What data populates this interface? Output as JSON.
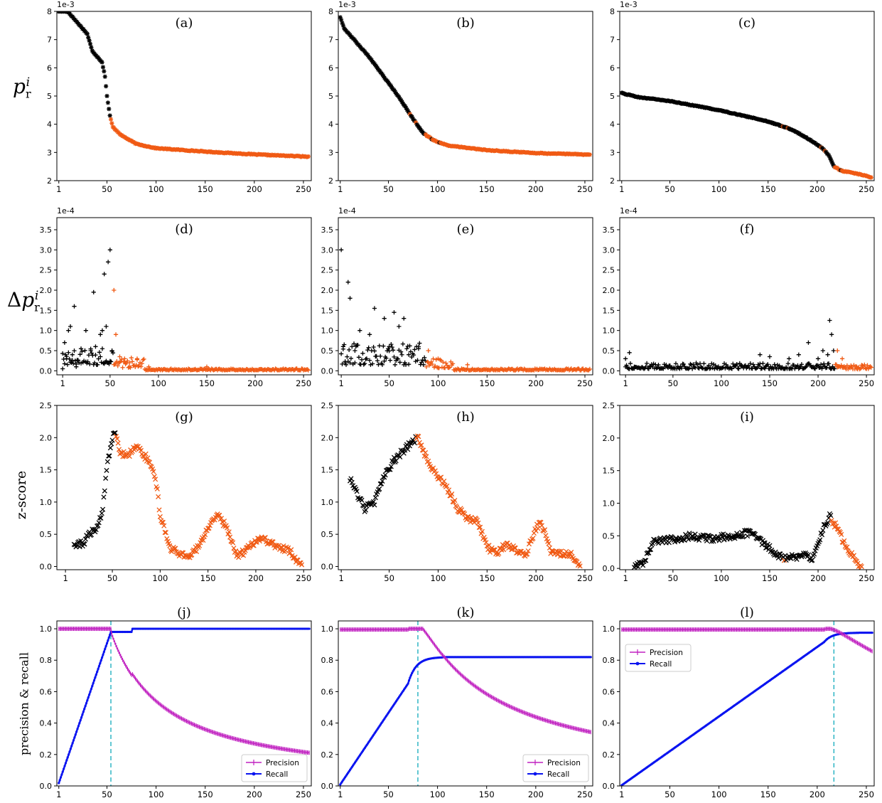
{
  "row_labels": [
    {
      "id": "a",
      "base": "p",
      "sub": "r",
      "sup": "i",
      "prefix": ""
    },
    {
      "id": "b",
      "base": "p",
      "sub": "r",
      "sup": "i",
      "prefix": "Δ"
    },
    {
      "id": "c",
      "text": "z-score"
    },
    {
      "id": "d",
      "text": "precision & recall"
    }
  ],
  "colors": {
    "black": "#000000",
    "orange": "#f05a14",
    "magenta": "#c020c0",
    "blue": "#0a14f0",
    "cyan": "#20b0c0"
  },
  "chart_data": [
    {
      "panel": "(a)",
      "type": "scatter",
      "marker": "*",
      "exponent": "1e-3",
      "yticks": [
        2,
        3,
        4,
        5,
        6,
        7,
        8
      ],
      "ylim": [
        2,
        8
      ],
      "xticks": [
        1,
        50,
        100,
        150,
        200,
        250
      ],
      "xlim": [
        -1,
        258
      ],
      "split_rank": 54,
      "keypoints": [
        [
          10,
          8.0
        ],
        [
          15,
          7.8
        ],
        [
          20,
          7.6
        ],
        [
          30,
          7.2
        ],
        [
          35,
          6.6
        ],
        [
          45,
          6.2
        ],
        [
          48,
          5.7
        ],
        [
          50,
          5.0
        ],
        [
          53,
          4.3
        ],
        [
          56,
          3.9
        ],
        [
          65,
          3.6
        ],
        [
          80,
          3.3
        ],
        [
          100,
          3.15
        ],
        [
          150,
          3.03
        ],
        [
          200,
          2.93
        ],
        [
          255,
          2.85
        ]
      ],
      "overrides": []
    },
    {
      "panel": "(b)",
      "type": "scatter",
      "marker": "*",
      "exponent": "1e-3",
      "yticks": [
        2,
        3,
        4,
        5,
        6,
        7,
        8
      ],
      "ylim": [
        2,
        8
      ],
      "xticks": [
        1,
        50,
        100,
        150,
        200,
        250
      ],
      "xlim": [
        -1,
        258
      ],
      "split_rank": 88,
      "keypoints": [
        [
          1,
          7.8
        ],
        [
          5,
          7.4
        ],
        [
          15,
          7.0
        ],
        [
          30,
          6.4
        ],
        [
          45,
          5.7
        ],
        [
          60,
          5.0
        ],
        [
          75,
          4.2
        ],
        [
          85,
          3.7
        ],
        [
          95,
          3.45
        ],
        [
          110,
          3.25
        ],
        [
          150,
          3.08
        ],
        [
          200,
          2.98
        ],
        [
          255,
          2.92
        ]
      ],
      "overrides": [
        [
          72,
          1
        ],
        [
          78,
          1
        ],
        [
          94,
          0
        ],
        [
          102,
          0
        ]
      ]
    },
    {
      "panel": "(c)",
      "type": "scatter",
      "marker": "*",
      "exponent": "1e-3",
      "yticks": [
        2,
        3,
        4,
        5,
        6,
        7,
        8
      ],
      "ylim": [
        2,
        8
      ],
      "xticks": [
        1,
        50,
        100,
        150,
        200,
        250
      ],
      "xlim": [
        -1,
        258
      ],
      "split_rank": 218,
      "keypoints": [
        [
          1,
          5.1
        ],
        [
          20,
          4.95
        ],
        [
          50,
          4.82
        ],
        [
          100,
          4.5
        ],
        [
          150,
          4.1
        ],
        [
          175,
          3.8
        ],
        [
          195,
          3.4
        ],
        [
          205,
          3.15
        ],
        [
          212,
          2.9
        ],
        [
          217,
          2.5
        ],
        [
          225,
          2.35
        ],
        [
          240,
          2.25
        ],
        [
          255,
          2.12
        ]
      ],
      "overrides": [
        [
          165,
          1
        ],
        [
          170,
          1
        ],
        [
          204,
          1
        ],
        [
          208,
          1
        ],
        [
          224,
          0
        ]
      ]
    },
    {
      "panel": "(d)",
      "type": "scatter",
      "marker": "+",
      "exponent": "1e-4",
      "yticks": [
        "0.0",
        "0.5",
        "1.0",
        "1.5",
        "2.0",
        "2.5",
        "3.0",
        "3.5"
      ],
      "ylim": [
        -0.1,
        3.8
      ],
      "xticks": [
        1,
        50,
        100,
        150,
        200,
        250
      ],
      "xlim": [
        -5,
        258
      ],
      "split_rank": 54,
      "points": [
        [
          1,
          0.05
        ],
        [
          3,
          0.7
        ],
        [
          5,
          0.3
        ],
        [
          7,
          1.0
        ],
        [
          9,
          1.1
        ],
        [
          11,
          0.4
        ],
        [
          13,
          1.6
        ],
        [
          15,
          0.1
        ],
        [
          20,
          0.55
        ],
        [
          25,
          1.0
        ],
        [
          30,
          0.5
        ],
        [
          33,
          1.95
        ],
        [
          35,
          0.6
        ],
        [
          40,
          0.9
        ],
        [
          42,
          1.0
        ],
        [
          44,
          2.4
        ],
        [
          46,
          1.1
        ],
        [
          48,
          2.7
        ],
        [
          50,
          3.0
        ],
        [
          52,
          0.5
        ],
        [
          54,
          2.0
        ],
        [
          56,
          0.9
        ],
        [
          60,
          0.35
        ],
        [
          65,
          0.3
        ],
        [
          70,
          0.2
        ],
        [
          78,
          0.3
        ],
        [
          90,
          0.1
        ],
        [
          150,
          0.1
        ]
      ],
      "bands": [
        {
          "start": 1,
          "end": 53,
          "amp": 0.4,
          "base": 0.15
        },
        {
          "start": 54,
          "end": 85,
          "amp": 0.25,
          "base": 0.08
        },
        {
          "start": 86,
          "end": 255,
          "amp": 0.04,
          "base": 0.015
        }
      ]
    },
    {
      "panel": "(e)",
      "type": "scatter",
      "marker": "+",
      "exponent": "1e-4",
      "yticks": [
        "0.0",
        "0.5",
        "1.0",
        "1.5",
        "2.0",
        "2.5",
        "3.0",
        "3.5"
      ],
      "ylim": [
        -0.1,
        3.8
      ],
      "xticks": [
        1,
        50,
        100,
        150,
        200,
        250
      ],
      "xlim": [
        -2,
        258
      ],
      "split_rank": 88,
      "points": [
        [
          1,
          3.0
        ],
        [
          3,
          0.6
        ],
        [
          5,
          0.2
        ],
        [
          8,
          2.2
        ],
        [
          10,
          1.8
        ],
        [
          15,
          0.5
        ],
        [
          20,
          1.0
        ],
        [
          30,
          0.9
        ],
        [
          35,
          1.55
        ],
        [
          45,
          1.3
        ],
        [
          50,
          0.6
        ],
        [
          55,
          1.45
        ],
        [
          60,
          1.1
        ],
        [
          65,
          1.3
        ],
        [
          70,
          0.4
        ],
        [
          80,
          0.55
        ],
        [
          90,
          0.5
        ],
        [
          100,
          0.3
        ],
        [
          130,
          0.15
        ]
      ],
      "bands": [
        {
          "start": 1,
          "end": 87,
          "amp": 0.55,
          "base": 0.15
        },
        {
          "start": 88,
          "end": 115,
          "amp": 0.25,
          "base": 0.07
        },
        {
          "start": 116,
          "end": 255,
          "amp": 0.04,
          "base": 0.015
        }
      ]
    },
    {
      "panel": "(f)",
      "type": "scatter",
      "marker": "+",
      "exponent": "1e-4",
      "yticks": [
        "0.0",
        "0.5",
        "1.0",
        "1.5",
        "2.0",
        "2.5",
        "3.0",
        "3.5"
      ],
      "ylim": [
        -0.1,
        3.8
      ],
      "xticks": [
        1,
        50,
        100,
        150,
        200,
        250
      ],
      "xlim": [
        -5,
        258
      ],
      "split_rank": 218,
      "points": [
        [
          1,
          0.3
        ],
        [
          5,
          0.45
        ],
        [
          10,
          0.1
        ],
        [
          140,
          0.4
        ],
        [
          150,
          0.35
        ],
        [
          170,
          0.3
        ],
        [
          180,
          0.4
        ],
        [
          190,
          0.7
        ],
        [
          200,
          0.3
        ],
        [
          205,
          0.5
        ],
        [
          210,
          0.4
        ],
        [
          212,
          1.25
        ],
        [
          214,
          0.9
        ],
        [
          216,
          0.5
        ],
        [
          220,
          0.5
        ],
        [
          225,
          0.3
        ],
        [
          240,
          0.1
        ],
        [
          250,
          0.05
        ]
      ],
      "bands": [
        {
          "start": 1,
          "end": 217,
          "amp": 0.15,
          "base": 0.05
        },
        {
          "start": 218,
          "end": 255,
          "amp": 0.12,
          "base": 0.04
        }
      ]
    },
    {
      "panel": "(g)",
      "type": "scatter",
      "marker": "x",
      "yticks": [
        "0.0",
        "0.5",
        "1.0",
        "1.5",
        "2.0",
        "2.5"
      ],
      "ylim": [
        -0.05,
        2.5
      ],
      "xticks": [
        1,
        50,
        100,
        150,
        200,
        250
      ],
      "xlim": [
        -8,
        258
      ],
      "split_rank": 54,
      "start": 10,
      "end": 248,
      "keypoints": [
        [
          10,
          0.35
        ],
        [
          20,
          0.35
        ],
        [
          25,
          0.5
        ],
        [
          30,
          0.55
        ],
        [
          35,
          0.6
        ],
        [
          40,
          0.9
        ],
        [
          45,
          1.6
        ],
        [
          50,
          2.0
        ],
        [
          53,
          2.1
        ],
        [
          57,
          1.8
        ],
        [
          65,
          1.7
        ],
        [
          75,
          1.85
        ],
        [
          85,
          1.7
        ],
        [
          95,
          1.4
        ],
        [
          100,
          0.8
        ],
        [
          110,
          0.3
        ],
        [
          120,
          0.2
        ],
        [
          130,
          0.15
        ],
        [
          140,
          0.3
        ],
        [
          150,
          0.6
        ],
        [
          160,
          0.8
        ],
        [
          170,
          0.6
        ],
        [
          180,
          0.15
        ],
        [
          190,
          0.25
        ],
        [
          205,
          0.45
        ],
        [
          215,
          0.35
        ],
        [
          225,
          0.3
        ],
        [
          235,
          0.25
        ],
        [
          248,
          0.0
        ]
      ]
    },
    {
      "panel": "(h)",
      "type": "scatter",
      "marker": "x",
      "yticks": [
        "0.0",
        "0.5",
        "1.0",
        "1.5",
        "2.0",
        "2.5"
      ],
      "ylim": [
        -0.05,
        2.5
      ],
      "xticks": [
        1,
        50,
        100,
        150,
        200,
        250
      ],
      "xlim": [
        -2,
        258
      ],
      "split_rank": 78,
      "start": 10,
      "end": 245,
      "keypoints": [
        [
          10,
          1.35
        ],
        [
          15,
          1.2
        ],
        [
          25,
          0.9
        ],
        [
          35,
          1.0
        ],
        [
          45,
          1.4
        ],
        [
          55,
          1.65
        ],
        [
          65,
          1.8
        ],
        [
          75,
          1.95
        ],
        [
          80,
          2.0
        ],
        [
          90,
          1.6
        ],
        [
          100,
          1.4
        ],
        [
          110,
          1.2
        ],
        [
          120,
          0.9
        ],
        [
          130,
          0.75
        ],
        [
          140,
          0.7
        ],
        [
          150,
          0.3
        ],
        [
          160,
          0.2
        ],
        [
          170,
          0.35
        ],
        [
          180,
          0.25
        ],
        [
          190,
          0.2
        ],
        [
          200,
          0.6
        ],
        [
          205,
          0.7
        ],
        [
          215,
          0.25
        ],
        [
          225,
          0.2
        ],
        [
          235,
          0.2
        ],
        [
          245,
          0.0
        ]
      ]
    },
    {
      "panel": "(i)",
      "type": "scatter",
      "marker": "x",
      "yticks": [
        "0.0",
        "0.5",
        "1.0",
        "1.5",
        "2.0",
        "2.5"
      ],
      "ylim": [
        -0.02,
        2.5
      ],
      "xticks": [
        1,
        50,
        100,
        150,
        200,
        250
      ],
      "xlim": [
        -5,
        258
      ],
      "split_rank": 214,
      "start": 10,
      "end": 245,
      "keypoints": [
        [
          10,
          0.05
        ],
        [
          20,
          0.1
        ],
        [
          30,
          0.4
        ],
        [
          50,
          0.45
        ],
        [
          70,
          0.5
        ],
        [
          90,
          0.45
        ],
        [
          110,
          0.5
        ],
        [
          130,
          0.55
        ],
        [
          150,
          0.3
        ],
        [
          165,
          0.15
        ],
        [
          185,
          0.2
        ],
        [
          195,
          0.15
        ],
        [
          205,
          0.6
        ],
        [
          212,
          0.8
        ],
        [
          220,
          0.6
        ],
        [
          230,
          0.3
        ],
        [
          245,
          0.0
        ]
      ],
      "overrides": [
        [
          165,
          1
        ]
      ]
    },
    {
      "panel": "(j)",
      "type": "line",
      "yticks": [
        "0.0",
        "0.2",
        "0.4",
        "0.6",
        "0.8",
        "1.0"
      ],
      "ylim": [
        0,
        1.05
      ],
      "xticks": [
        1,
        50,
        100,
        150,
        200,
        250
      ],
      "xlim": [
        -1,
        258
      ],
      "vline": 54,
      "P": 54,
      "recall_max": 1.0,
      "recall_step": [
        [
          54,
          0.98
        ],
        [
          75,
          0.98
        ],
        [
          76,
          1.0
        ]
      ],
      "legend": [
        "Precision",
        "Recall"
      ],
      "legend_pos": "bottom-right"
    },
    {
      "panel": "(k)",
      "type": "line",
      "yticks": [
        "0.0",
        "0.2",
        "0.4",
        "0.6",
        "0.8",
        "1.0"
      ],
      "ylim": [
        0,
        1.05
      ],
      "xticks": [
        1,
        50,
        100,
        150,
        200,
        250
      ],
      "xlim": [
        -1,
        258
      ],
      "vline": 80,
      "P": 107,
      "recall_max": 0.82,
      "legend": [
        "Precision",
        "Recall"
      ],
      "legend_pos": "bottom-right"
    },
    {
      "panel": "(l)",
      "type": "line",
      "yticks": [
        "0.0",
        "0.2",
        "0.4",
        "0.6",
        "0.8",
        "1.0"
      ],
      "ylim": [
        0,
        1.05
      ],
      "xticks": [
        1,
        50,
        100,
        150,
        200,
        250
      ],
      "xlim": [
        -1,
        258
      ],
      "vline": 217,
      "P": 225,
      "recall_max": 0.975,
      "legend": [
        "Precision",
        "Recall"
      ],
      "legend_pos": "top-left"
    }
  ]
}
